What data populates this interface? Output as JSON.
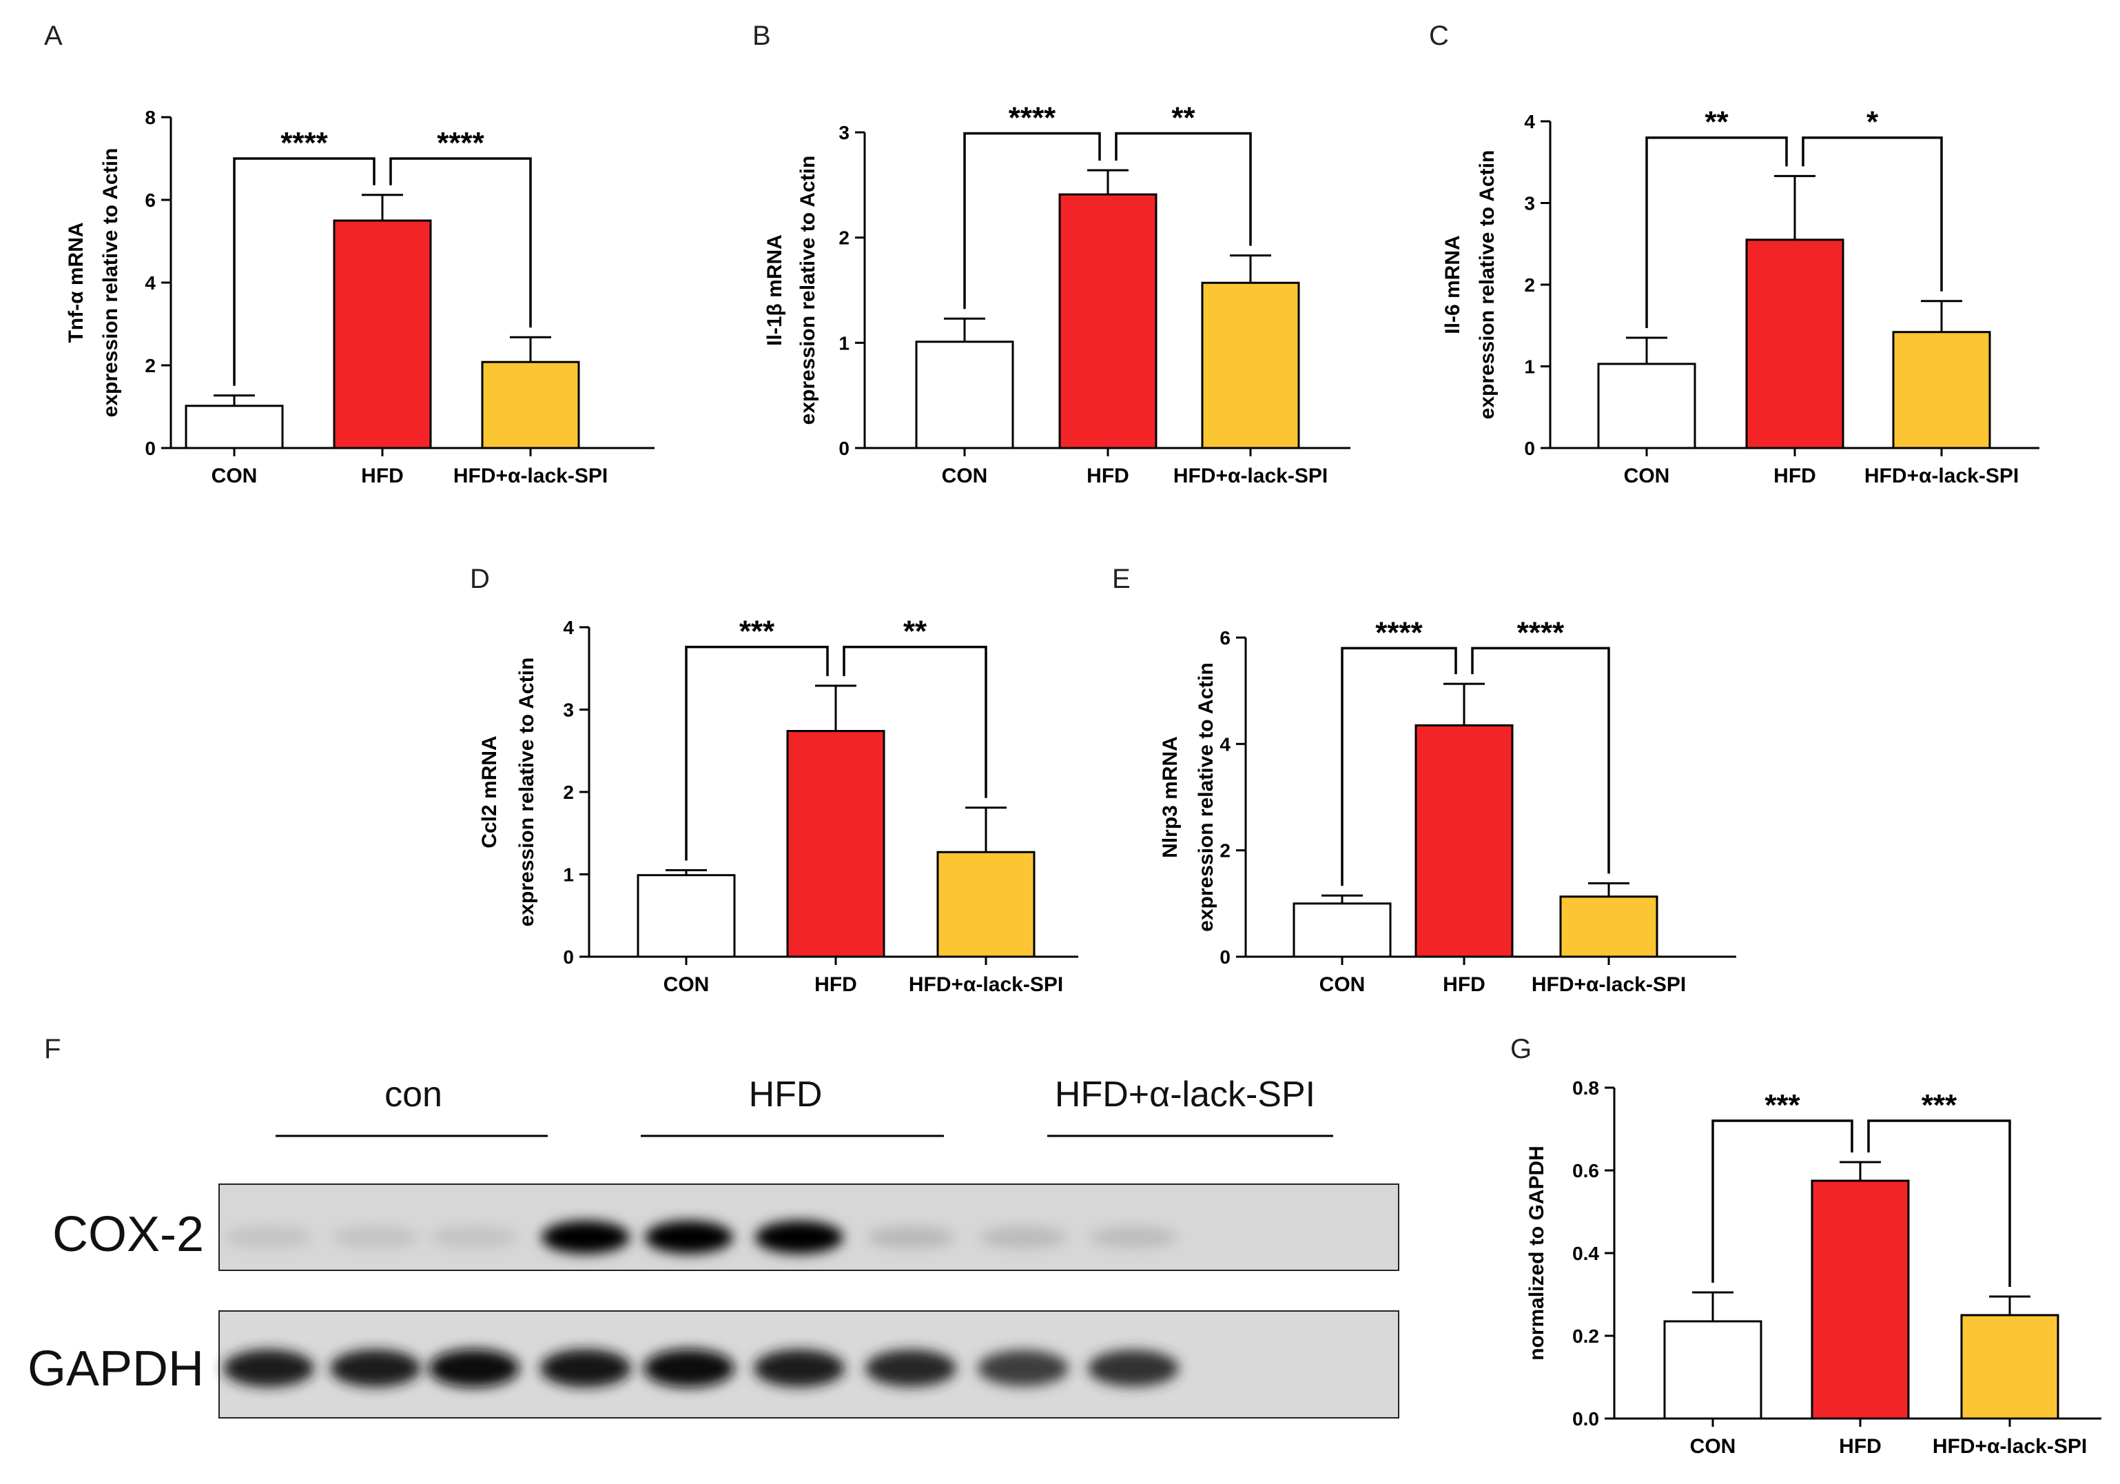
{
  "panel_letters": {
    "A": "A",
    "B": "B",
    "C": "C",
    "D": "D",
    "E": "E",
    "F": "F",
    "G": "G"
  },
  "colors": {
    "CON": "#ffffff",
    "HFD": "#f22428",
    "HFD+α-lack-SPI": "#fcc533"
  },
  "chart_data": [
    {
      "panel": "A",
      "type": "bar",
      "categories": [
        "CON",
        "HFD",
        "HFD+α-lack-SPI"
      ],
      "values": [
        1.02,
        5.5,
        2.08
      ],
      "errors": [
        0.25,
        0.62,
        0.6
      ],
      "ylabel_line1": "Tnf-α mRNA",
      "ylabel_line2": "expression relative to Actin",
      "ylim": [
        0,
        8
      ],
      "yticks": [
        "0",
        "2",
        "4",
        "6",
        "8"
      ],
      "yticks_values": [
        0,
        2,
        4,
        6,
        8
      ],
      "significance": [
        {
          "from": 0,
          "to": 1,
          "label": "****"
        },
        {
          "from": 1,
          "to": 2,
          "label": "****"
        }
      ],
      "sig_line_y": 7.0
    },
    {
      "panel": "B",
      "type": "bar",
      "categories": [
        "CON",
        "HFD",
        "HFD+α-lack-SPI"
      ],
      "values": [
        1.01,
        2.41,
        1.57
      ],
      "errors": [
        0.22,
        0.23,
        0.26
      ],
      "ylabel_line1": "Il-1β mRNA",
      "ylabel_line2": "expression relative to Actin",
      "ylim": [
        0,
        3
      ],
      "yticks": [
        "0",
        "1",
        "2",
        "3"
      ],
      "yticks_values": [
        0,
        1,
        2,
        3
      ],
      "significance": [
        {
          "from": 0,
          "to": 1,
          "label": "****"
        },
        {
          "from": 1,
          "to": 2,
          "label": "**"
        }
      ],
      "sig_line_y": 2.99
    },
    {
      "panel": "C",
      "type": "bar",
      "categories": [
        "CON",
        "HFD",
        "HFD+α-lack-SPI"
      ],
      "values": [
        1.03,
        2.55,
        1.42
      ],
      "errors": [
        0.32,
        0.78,
        0.38
      ],
      "ylabel_line1": "Il-6 mRNA",
      "ylabel_line2": "expression relative to Actin",
      "ylim": [
        0,
        4
      ],
      "yticks": [
        "0",
        "1",
        "2",
        "3",
        "4"
      ],
      "yticks_values": [
        0,
        1,
        2,
        3,
        4
      ],
      "significance": [
        {
          "from": 0,
          "to": 1,
          "label": "**"
        },
        {
          "from": 1,
          "to": 2,
          "label": "*"
        }
      ],
      "sig_line_y": 3.8
    },
    {
      "panel": "D",
      "type": "bar",
      "categories": [
        "CON",
        "HFD",
        "HFD+α-lack-SPI"
      ],
      "values": [
        0.99,
        2.74,
        1.27
      ],
      "errors": [
        0.06,
        0.55,
        0.54
      ],
      "ylabel_line1": "Ccl2 mRNA",
      "ylabel_line2": "expression relative to Actin",
      "ylim": [
        0,
        4
      ],
      "yticks": [
        "0",
        "1",
        "2",
        "3",
        "4"
      ],
      "yticks_values": [
        0,
        1,
        2,
        3,
        4
      ],
      "significance": [
        {
          "from": 0,
          "to": 1,
          "label": "***"
        },
        {
          "from": 1,
          "to": 2,
          "label": "**"
        }
      ],
      "sig_line_y": 3.76
    },
    {
      "panel": "E",
      "type": "bar",
      "categories": [
        "CON",
        "HFD",
        "HFD+α-lack-SPI"
      ],
      "values": [
        1.0,
        4.35,
        1.13
      ],
      "errors": [
        0.15,
        0.78,
        0.25
      ],
      "ylabel_line1": "Nlrp3 mRNA",
      "ylabel_line2": "expression relative to Actin",
      "ylim": [
        0,
        6
      ],
      "yticks": [
        "0",
        "2",
        "4",
        "6"
      ],
      "yticks_values": [
        0,
        2,
        4,
        6
      ],
      "significance": [
        {
          "from": 0,
          "to": 1,
          "label": "****"
        },
        {
          "from": 1,
          "to": 2,
          "label": "****"
        }
      ],
      "sig_line_y": 5.8
    },
    {
      "panel": "G",
      "type": "bar",
      "categories": [
        "CON",
        "HFD",
        "HFD+α-lack-SPI"
      ],
      "values": [
        0.235,
        0.575,
        0.25
      ],
      "errors": [
        0.07,
        0.045,
        0.045
      ],
      "ylabel_line1": "normalized to GAPDH",
      "ylabel_line2": "",
      "ylim": [
        0,
        0.8
      ],
      "yticks": [
        "0.0",
        "0.2",
        "0.4",
        "0.6",
        "0.8"
      ],
      "yticks_values": [
        0,
        0.2,
        0.4,
        0.6,
        0.8
      ],
      "significance": [
        {
          "from": 0,
          "to": 1,
          "label": "***"
        },
        {
          "from": 1,
          "to": 2,
          "label": "***"
        }
      ],
      "sig_line_y": 0.72
    }
  ],
  "blot": {
    "group_labels": [
      "con",
      "HFD",
      "HFD+α-lack-SPI"
    ],
    "row_labels": [
      "COX-2",
      "GAPDH"
    ],
    "cox2_band_intensity": [
      0.1,
      0.1,
      0.1,
      1.0,
      1.0,
      1.0,
      0.2,
      0.18,
      0.16
    ],
    "gapdh_band_intensity": [
      0.85,
      0.85,
      0.95,
      0.9,
      0.95,
      0.85,
      0.8,
      0.7,
      0.75
    ]
  }
}
